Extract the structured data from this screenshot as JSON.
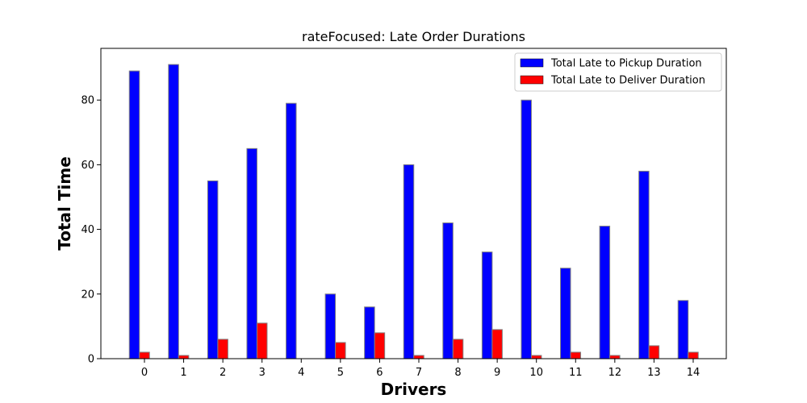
{
  "chart_data": {
    "type": "bar",
    "title": "rateFocused: Late Order Durations",
    "xlabel": "Drivers",
    "ylabel": "Total Time",
    "categories": [
      "0",
      "1",
      "2",
      "3",
      "4",
      "5",
      "6",
      "7",
      "8",
      "9",
      "10",
      "11",
      "12",
      "13",
      "14"
    ],
    "series": [
      {
        "name": "Total Late to Pickup Duration",
        "color": "#0000ff",
        "values": [
          89,
          91,
          55,
          65,
          79,
          20,
          16,
          60,
          42,
          33,
          80,
          28,
          41,
          58,
          18
        ]
      },
      {
        "name": "Total Late to Deliver Duration",
        "color": "#ff0000",
        "values": [
          2,
          1,
          6,
          11,
          0,
          5,
          8,
          1,
          6,
          9,
          1,
          2,
          1,
          4,
          2
        ]
      }
    ],
    "ylim": [
      0,
      96
    ],
    "yticks": [
      0,
      20,
      40,
      60,
      80
    ],
    "legend_position": "top-right",
    "bar_edge_color": "#808080",
    "grid": false
  }
}
